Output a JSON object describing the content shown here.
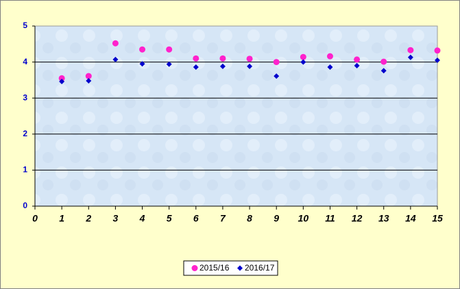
{
  "chart_data": {
    "type": "scatter",
    "x": [
      1,
      2,
      3,
      4,
      5,
      6,
      7,
      8,
      9,
      10,
      11,
      12,
      13,
      14,
      15
    ],
    "series": [
      {
        "name": "2015/16",
        "color": "#ff22cc",
        "marker": "circle",
        "values": [
          3.55,
          3.61,
          4.52,
          4.35,
          4.35,
          4.1,
          4.1,
          4.09,
          4.0,
          4.14,
          4.16,
          4.07,
          4.01,
          4.33,
          4.32
        ]
      },
      {
        "name": "2016/17",
        "color": "#0000cc",
        "marker": "diamond",
        "values": [
          3.46,
          3.48,
          4.07,
          3.95,
          3.94,
          3.86,
          3.88,
          3.88,
          3.61,
          4.0,
          3.86,
          3.9,
          3.76,
          4.13,
          4.05
        ]
      }
    ],
    "xlim": [
      0,
      15
    ],
    "xticks": [
      0,
      1,
      2,
      3,
      4,
      5,
      6,
      7,
      8,
      9,
      10,
      11,
      12,
      13,
      14,
      15
    ],
    "ylim": [
      0,
      5
    ],
    "yticks": [
      0,
      1,
      2,
      3,
      4,
      5
    ],
    "grid": true,
    "legend": "bottom"
  }
}
